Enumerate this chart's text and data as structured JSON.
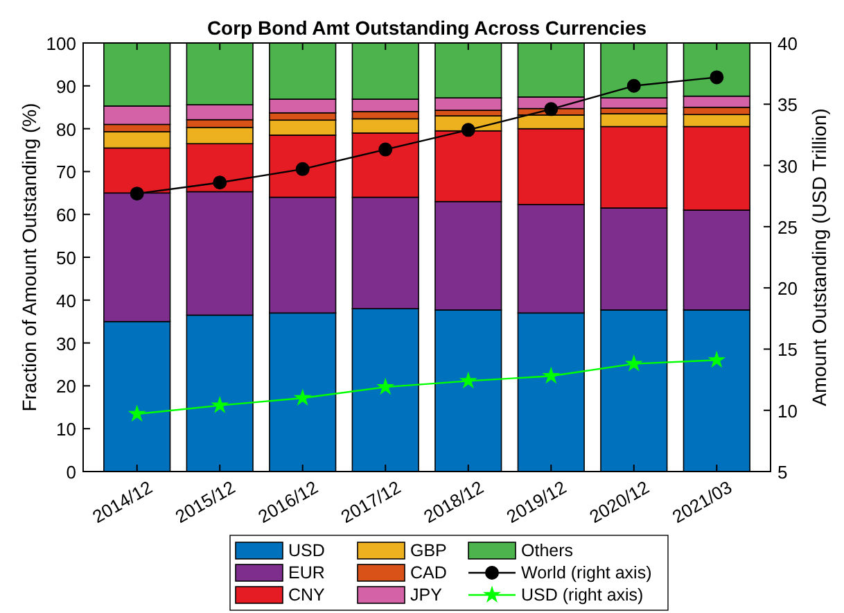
{
  "chart_data": {
    "type": "bar",
    "title": "Corp Bond Amt Outstanding Across Currencies",
    "ylabel": "Fraction of Amount Outstanding (%)",
    "y2label": "Amount Outstanding (USD Trillion)",
    "stacked": true,
    "categories": [
      "2014/12",
      "2015/12",
      "2016/12",
      "2017/12",
      "2018/12",
      "2019/12",
      "2020/12",
      "2021/03"
    ],
    "ylim": [
      0,
      100
    ],
    "yticks": [
      0,
      10,
      20,
      30,
      40,
      50,
      60,
      70,
      80,
      90,
      100
    ],
    "y2lim": [
      5,
      40
    ],
    "y2ticks": [
      5,
      10,
      15,
      20,
      25,
      30,
      35,
      40
    ],
    "legend": "bottom",
    "grid": false,
    "series": [
      {
        "name": "USD",
        "color": "#0072bd",
        "values": [
          35,
          36.5,
          37,
          38,
          37.7,
          37,
          37.7,
          37.7
        ]
      },
      {
        "name": "EUR",
        "color": "#7e2f8e",
        "values": [
          30,
          28.8,
          27,
          26,
          25.3,
          25.3,
          23.8,
          23.3
        ]
      },
      {
        "name": "CNY",
        "color": "#e51c23",
        "values": [
          10.5,
          11.2,
          14.5,
          15,
          16.5,
          17.7,
          19,
          19.5
        ]
      },
      {
        "name": "GBP",
        "color": "#edb120",
        "values": [
          3.8,
          3.8,
          3.5,
          3.3,
          3.5,
          3.2,
          3,
          2.8
        ]
      },
      {
        "name": "CAD",
        "color": "#d95319",
        "values": [
          1.7,
          1.8,
          1.7,
          1.7,
          1.3,
          1.5,
          1.3,
          1.7
        ]
      },
      {
        "name": "JPY",
        "color": "#d462a6",
        "values": [
          4.3,
          3.5,
          3.2,
          2.9,
          2.9,
          2.7,
          2.4,
          2.6
        ]
      },
      {
        "name": "Others",
        "color": "#4db34d",
        "values": [
          14.7,
          14.4,
          13.1,
          13.1,
          12.8,
          12.6,
          12.8,
          12.4
        ]
      },
      {
        "name": "World (right axis)",
        "type": "line",
        "axis": "y2",
        "color": "#000000",
        "marker": "circle",
        "values": [
          27.7,
          28.6,
          29.7,
          31.3,
          32.9,
          34.6,
          36.5,
          37.2
        ]
      },
      {
        "name": "USD (right axis)",
        "type": "line",
        "axis": "y2",
        "color": "#00ff00",
        "marker": "star",
        "values": [
          9.7,
          10.4,
          11.0,
          11.9,
          12.4,
          12.8,
          13.8,
          14.1
        ]
      }
    ]
  }
}
